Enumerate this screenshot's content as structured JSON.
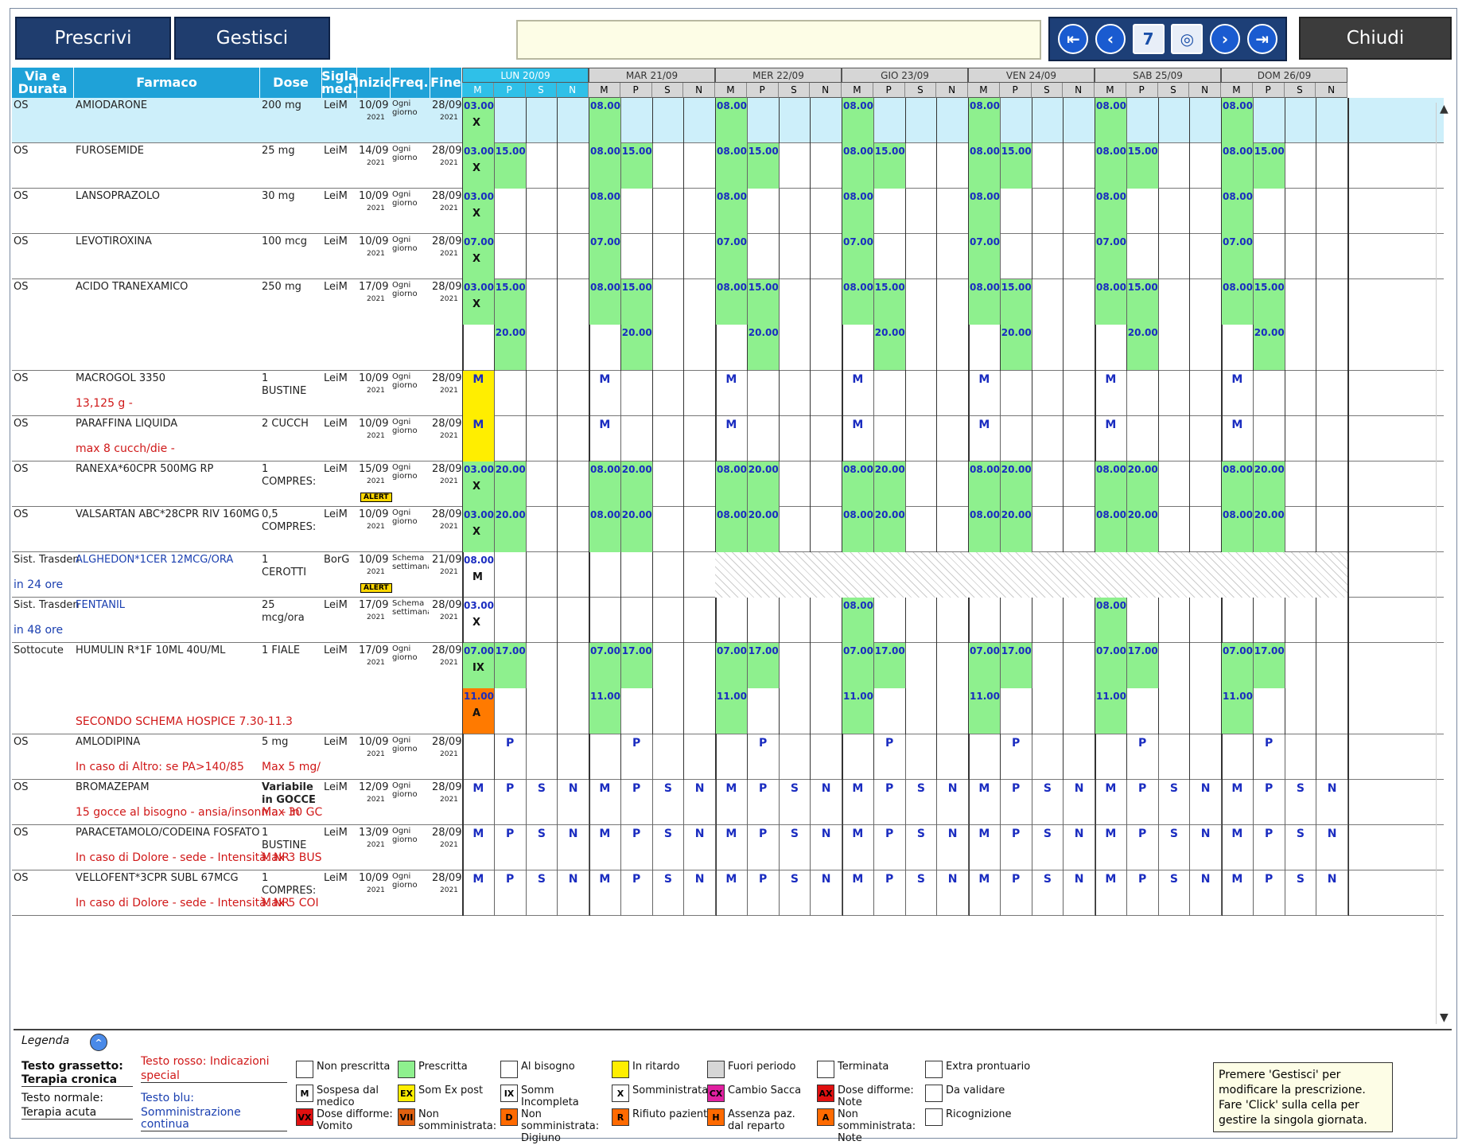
{
  "toolbar": {
    "prescrivi": "Prescrivi",
    "gestisci": "Gestisci",
    "chiudi": "Chiudi",
    "search_value": ""
  },
  "nav": {
    "first": "⇤",
    "prev": "‹",
    "calendar": "7",
    "today": "◎",
    "next": "›",
    "last": "⇥"
  },
  "columns": {
    "via": "Via e Durata",
    "farmaco": "Farmaco",
    "dose": "Dose",
    "sigla": "Sigla med.",
    "inizio": "Inizio",
    "freq": "Freq.",
    "fine": "Fine"
  },
  "days": [
    "LUN 20/09",
    "MAR 21/09",
    "MER 22/09",
    "GIO 23/09",
    "VEN 24/09",
    "SAB 25/09",
    "DOM 26/09"
  ],
  "slots": [
    "M",
    "P",
    "S",
    "N"
  ],
  "rows": [
    {
      "via": "OS",
      "farmaco": "AMIODARONE",
      "dose": "200 mg",
      "dose2": "",
      "sigla": "LeiM",
      "inizio": "10/09",
      "anno": "2021",
      "freq": "Ogni",
      "freq2": "giorno",
      "fine": "28/09",
      "anno_fine": "2021",
      "sub": ""
    },
    {
      "via": "OS",
      "farmaco": "FUROSEMIDE",
      "dose": "25 mg",
      "dose2": "",
      "sigla": "LeiM",
      "inizio": "14/09",
      "anno": "2021",
      "freq": "Ogni",
      "freq2": "giorno",
      "fine": "28/09",
      "anno_fine": "2021",
      "sub": ""
    },
    {
      "via": "OS",
      "farmaco": "LANSOPRAZOLO",
      "dose": "30 mg",
      "dose2": "",
      "sigla": "LeiM",
      "inizio": "10/09",
      "anno": "2021",
      "freq": "Ogni",
      "freq2": "giorno",
      "fine": "28/09",
      "anno_fine": "2021",
      "sub": ""
    },
    {
      "via": "OS",
      "farmaco": "LEVOTIROXINA",
      "dose": "100 mcg",
      "dose2": "",
      "sigla": "LeiM",
      "inizio": "10/09",
      "anno": "2021",
      "freq": "Ogni",
      "freq2": "giorno",
      "fine": "28/09",
      "anno_fine": "2021",
      "sub": ""
    },
    {
      "via": "OS",
      "farmaco": "ACIDO TRANEXAMICO",
      "dose": "250 mg",
      "dose2": "",
      "sigla": "LeiM",
      "inizio": "17/09",
      "anno": "2021",
      "freq": "Ogni",
      "freq2": "giorno",
      "fine": "28/09",
      "anno_fine": "2021",
      "sub": ""
    },
    {
      "via": "OS",
      "farmaco": "MACROGOL 3350",
      "dose": "1",
      "dose2": "BUSTINE",
      "sigla": "LeiM",
      "inizio": "10/09",
      "anno": "2021",
      "freq": "Ogni",
      "freq2": "giorno",
      "fine": "28/09",
      "anno_fine": "2021",
      "sub": "13,125 g -"
    },
    {
      "via": "OS",
      "farmaco": "PARAFFINA LIQUIDA",
      "dose": "2 CUCCH",
      "dose2": "",
      "sigla": "LeiM",
      "inizio": "10/09",
      "anno": "2021",
      "freq": "Ogni",
      "freq2": "giorno",
      "fine": "28/09",
      "anno_fine": "2021",
      "sub": "max 8 cucch/die -"
    },
    {
      "via": "OS",
      "farmaco": "RANEXA*60CPR 500MG RP",
      "dose": "1",
      "dose2": "COMPRES:",
      "sigla": "LeiM",
      "inizio": "15/09",
      "anno": "2021",
      "freq": "Ogni",
      "freq2": "giorno",
      "fine": "28/09",
      "anno_fine": "2021",
      "sub": ""
    },
    {
      "via": "OS",
      "farmaco": "VALSARTAN ABC*28CPR RIV 160MG",
      "dose": "0,5",
      "dose2": "COMPRES:",
      "sigla": "LeiM",
      "inizio": "10/09",
      "anno": "2021",
      "freq": "Ogni",
      "freq2": "giorno",
      "fine": "28/09",
      "anno_fine": "2021",
      "sub": ""
    },
    {
      "via": "Sist. Trasden",
      "farmaco": "ALGHEDON*1CER 12MCG/ORA",
      "dose": "1",
      "dose2": "CEROTTI",
      "sigla": "BorG",
      "inizio": "10/09",
      "anno": "2021",
      "freq": "Schema",
      "freq2": "settimana",
      "fine": "21/09",
      "anno_fine": "2021",
      "sub": "in 24 ore"
    },
    {
      "via": "Sist. Trasden",
      "farmaco": "FENTANIL",
      "dose": "25",
      "dose2": "mcg/ora",
      "sigla": "LeiM",
      "inizio": "17/09",
      "anno": "2021",
      "freq": "Schema",
      "freq2": "settimana",
      "fine": "28/09",
      "anno_fine": "2021",
      "sub": "in 48 ore"
    },
    {
      "via": "Sottocute",
      "farmaco": "HUMULIN R*1F 10ML 40U/ML",
      "dose": "1 FIALE",
      "dose2": "",
      "sigla": "LeiM",
      "inizio": "17/09",
      "anno": "2021",
      "freq": "Ogni",
      "freq2": "giorno",
      "fine": "28/09",
      "anno_fine": "2021",
      "sub": "SECONDO SCHEMA HOSPICE 7.30-11.3"
    },
    {
      "via": "OS",
      "farmaco": "AMLODIPINA",
      "dose": "5 mg",
      "dose2": "",
      "sigla": "LeiM",
      "inizio": "10/09",
      "anno": "2021",
      "freq": "Ogni",
      "freq2": "giorno",
      "fine": "28/09",
      "anno_fine": "2021",
      "sub": "In caso di Altro: se PA>140/85",
      "sub2": "Max 5 mg/"
    },
    {
      "via": "OS",
      "farmaco": "BROMAZEPAM",
      "dose": "Variabile",
      "dose2": "in GOCCE",
      "sigla": "LeiM",
      "inizio": "12/09",
      "anno": "2021",
      "freq": "Ogni",
      "freq2": "giorno",
      "fine": "28/09",
      "anno_fine": "2021",
      "sub": "15 gocce al bisogno - ansia/insonnia - In",
      "sub2": "Max 30 GC"
    },
    {
      "via": "OS",
      "farmaco": "PARACETAMOLO/CODEINA FOSFATO",
      "dose": "1",
      "dose2": "BUSTINE",
      "sigla": "LeiM",
      "inizio": "13/09",
      "anno": "2021",
      "freq": "Ogni",
      "freq2": "giorno",
      "fine": "28/09",
      "anno_fine": "2021",
      "sub": "In caso di Dolore - sede - Intensità: NR",
      "sub2": "Max 3 BUS"
    },
    {
      "via": "OS",
      "farmaco": "VELLOFENT*3CPR SUBL 67MCG",
      "dose": "1",
      "dose2": "COMPRES:",
      "sigla": "LeiM",
      "inizio": "10/09",
      "anno": "2021",
      "freq": "Ogni",
      "freq2": "giorno",
      "fine": "28/09",
      "anno_fine": "2021",
      "sub": "In caso di Dolore - sede - Intensità: NR",
      "sub2": "Max 5 COI"
    }
  ],
  "alert_label": "ALERT",
  "times": {
    "t0300": "03.00",
    "t0800": "08.00",
    "t0700": "07.00",
    "t1500": "15.00",
    "t2000": "20.00",
    "t1700": "17.00",
    "t1100": "11.00"
  },
  "marks": {
    "x": "X",
    "m": "M",
    "p": "P",
    "s": "S",
    "n": "N",
    "ix": "IX",
    "a": "A"
  },
  "legend": {
    "title": "Legenda",
    "bold1": "Testo grassetto:",
    "bold2": "Terapia cronica",
    "normal1": "Testo normale:",
    "normal2": "Terapia acuta",
    "red1": "Testo rosso: Indicazioni",
    "red2": "special",
    "blue1": "Testo blu:",
    "blue2": "Somministrazione continua",
    "items": [
      {
        "label": "Non prescritta",
        "code": ""
      },
      {
        "label": "Sospesa dal medico",
        "code": "M"
      },
      {
        "label": "Dose difforme: Vomito",
        "code": "VX"
      },
      {
        "label": "Prescritta",
        "code": ""
      },
      {
        "label": "Som Ex post",
        "code": "EX"
      },
      {
        "label": "Non somministrata:",
        "code": "VII"
      },
      {
        "label": "Al bisogno",
        "code": ""
      },
      {
        "label": "Somm Incompleta",
        "code": "IX"
      },
      {
        "label": "Non somministrata: Digiuno",
        "code": "D"
      },
      {
        "label": "In ritardo",
        "code": ""
      },
      {
        "label": "Somministrata",
        "code": "X"
      },
      {
        "label": "Rifiuto paziente",
        "code": "R"
      },
      {
        "label": "Fuori periodo",
        "code": ""
      },
      {
        "label": "Cambio Sacca",
        "code": "CX"
      },
      {
        "label": "Assenza paz. dal reparto",
        "code": "H"
      },
      {
        "label": "Terminata",
        "code": ""
      },
      {
        "label": "Dose difforme: Note",
        "code": "AX"
      },
      {
        "label": "Non somministrata: Note",
        "code": "A"
      },
      {
        "label": "Extra prontuario",
        "code": ""
      },
      {
        "label": "Da validare",
        "code": ""
      },
      {
        "label": "Ricognizione",
        "code": ""
      }
    ],
    "note": "Premere 'Gestisci' per modificare la prescrizione. Fare 'Click' sulla cella per gestire la singola giornata."
  },
  "colors": {
    "header": "#1fa2d8",
    "prescritta": "#8ef08e",
    "ritardo": "#ffee00",
    "toolbar": "#1f3d6e"
  }
}
